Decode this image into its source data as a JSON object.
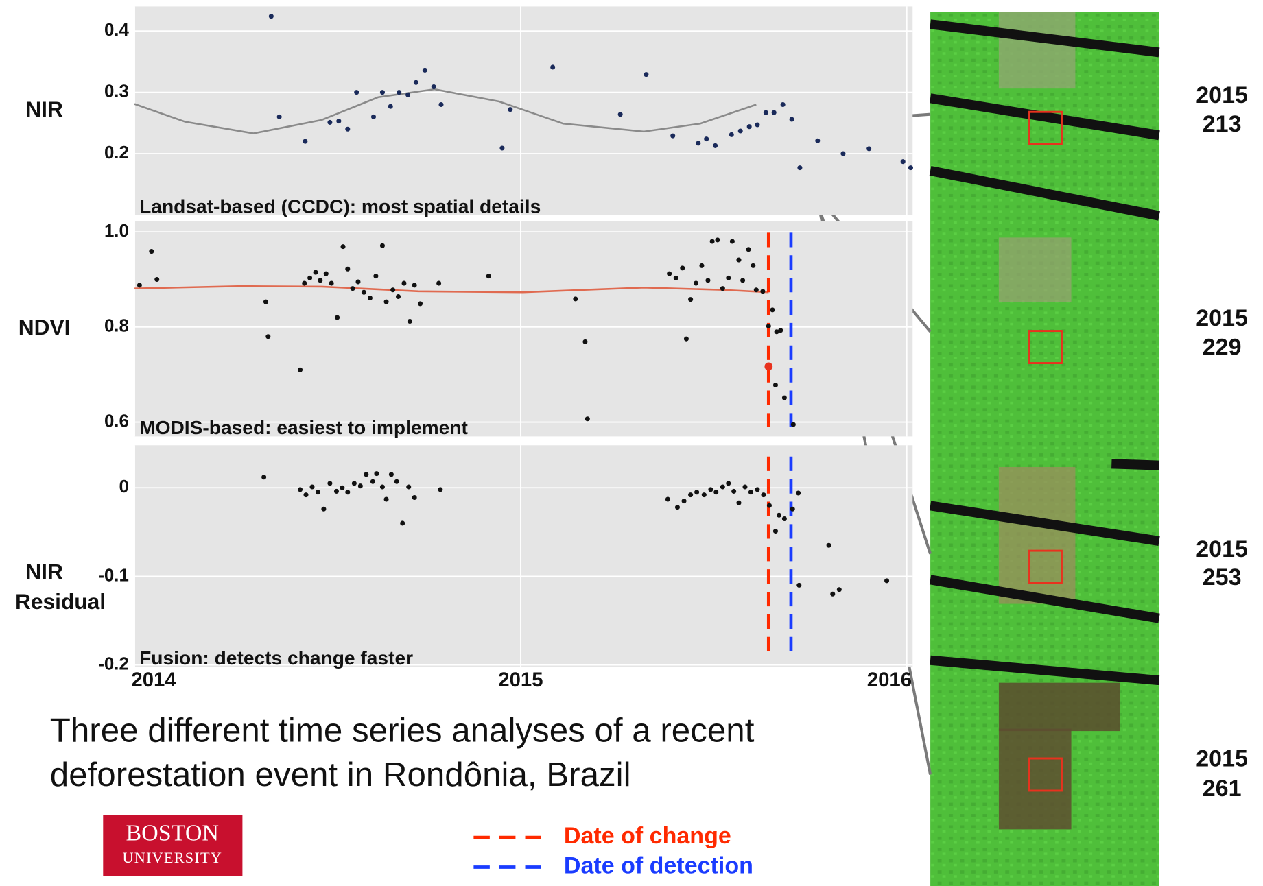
{
  "chart_data": [
    {
      "type": "scatter",
      "ylabel": [
        "NIR"
      ],
      "annotation": "Landsat-based (CCDC): most spatial details",
      "xlim": [
        2014,
        2016.015
      ],
      "ylim": [
        0.1,
        0.44
      ],
      "yticks": [
        0.2,
        0.3,
        0.4
      ],
      "grid": true,
      "points": {
        "color": "#1a2a5a",
        "x": [
          2014.354,
          2014.375,
          2014.442,
          2014.506,
          2014.529,
          2014.552,
          2014.575,
          2014.619,
          2014.642,
          2014.663,
          2014.685,
          2014.708,
          2014.729,
          2014.752,
          2014.775,
          2014.794,
          2014.952,
          2014.973,
          2015.083,
          2015.258,
          2015.325,
          2015.394,
          2015.46,
          2015.481,
          2015.504,
          2015.546,
          2015.569,
          2015.592,
          2015.613,
          2015.635,
          2015.656,
          2015.679,
          2015.702,
          2015.723,
          2015.769,
          2015.835,
          2015.902,
          2015.99,
          2016.01
        ],
        "values": [
          0.424,
          0.26,
          0.22,
          0.251,
          0.253,
          0.24,
          0.3,
          0.26,
          0.3,
          0.277,
          0.3,
          0.296,
          0.316,
          0.336,
          0.309,
          0.28,
          0.209,
          0.272,
          0.341,
          0.264,
          0.329,
          0.229,
          0.217,
          0.224,
          0.213,
          0.231,
          0.237,
          0.244,
          0.247,
          0.267,
          0.267,
          0.28,
          0.256,
          0.177,
          0.221,
          0.2,
          0.208,
          0.187,
          0.177
        ]
      },
      "fit": {
        "color": "#8a8a8a",
        "x": [
          2014.0,
          2014.131,
          2014.308,
          2014.485,
          2014.631,
          2014.777,
          2014.944,
          2015.11,
          2015.319,
          2015.465,
          2015.61
        ],
        "values": [
          0.281,
          0.252,
          0.233,
          0.255,
          0.292,
          0.305,
          0.285,
          0.249,
          0.236,
          0.249,
          0.28
        ]
      }
    },
    {
      "type": "scatter",
      "ylabel": [
        "NDVI"
      ],
      "annotation": "MODIS-based: easiest to implement",
      "xlim": [
        2014,
        2016.015
      ],
      "ylim": [
        0.57,
        1.022
      ],
      "yticks": [
        0.6,
        0.8,
        {
          "value": 1,
          "label": "1.0"
        }
      ],
      "grid": true,
      "show_dates": true,
      "points": {
        "color": "#111111",
        "x": [
          2014.013,
          2014.044,
          2014.058,
          2014.34,
          2014.346,
          2014.429,
          2014.44,
          2014.454,
          2014.469,
          2014.481,
          2014.496,
          2014.51,
          2014.525,
          2014.54,
          2014.552,
          2014.565,
          2014.579,
          2014.594,
          2014.61,
          2014.625,
          2014.642,
          2014.652,
          2014.669,
          2014.683,
          2014.698,
          2014.713,
          2014.725,
          2014.74,
          2014.788,
          2014.917,
          2015.142,
          2015.167,
          2015.173,
          2015.385,
          2015.402,
          2015.419,
          2015.429,
          2015.44,
          2015.454,
          2015.469,
          2015.485,
          2015.496,
          2015.51,
          2015.523,
          2015.538,
          2015.548,
          2015.565,
          2015.575,
          2015.59,
          2015.602,
          2015.61,
          2015.627,
          2015.642,
          2015.652,
          2015.663,
          2015.673,
          2015.66,
          2015.683,
          2015.706
        ],
        "values": [
          0.888,
          0.959,
          0.9,
          0.853,
          0.78,
          0.71,
          0.892,
          0.903,
          0.915,
          0.898,
          0.912,
          0.892,
          0.82,
          0.969,
          0.922,
          0.881,
          0.895,
          0.873,
          0.861,
          0.907,
          0.971,
          0.853,
          0.878,
          0.864,
          0.892,
          0.812,
          0.888,
          0.849,
          0.892,
          0.907,
          0.859,
          0.769,
          0.607,
          0.912,
          0.903,
          0.924,
          0.775,
          0.858,
          0.892,
          0.929,
          0.898,
          0.98,
          0.983,
          0.881,
          0.903,
          0.98,
          0.941,
          0.898,
          0.963,
          0.929,
          0.878,
          0.875,
          0.802,
          0.836,
          0.79,
          0.793,
          0.678,
          0.651,
          0.595
        ]
      },
      "highlight": {
        "x": 2015.642,
        "value": 0.717,
        "color": "#e8321e"
      },
      "fit": {
        "color": "#e06a50",
        "x": [
          2014.0,
          2014.277,
          2014.485,
          2014.735,
          2015.006,
          2015.319,
          2015.527,
          2015.642
        ],
        "values": [
          0.881,
          0.886,
          0.885,
          0.875,
          0.873,
          0.883,
          0.878,
          0.873
        ]
      }
    },
    {
      "type": "scatter",
      "ylabel": [
        "NIR",
        "Residual"
      ],
      "annotation": "Fusion:  detects change faster",
      "xlim": [
        2014,
        2016.015
      ],
      "ylim": [
        -0.202,
        0.048
      ],
      "yticks": [
        -0.2,
        -0.1,
        0
      ],
      "grid": true,
      "show_dates": true,
      "xticks": [
        2014,
        2015,
        2016
      ],
      "points": {
        "color": "#111111",
        "x": [
          2014.335,
          2014.429,
          2014.444,
          2014.46,
          2014.475,
          2014.49,
          2014.506,
          2014.523,
          2014.538,
          2014.552,
          2014.569,
          2014.585,
          2014.6,
          2014.617,
          2014.627,
          2014.642,
          2014.652,
          2014.665,
          2014.679,
          2014.694,
          2014.71,
          2014.725,
          2014.792,
          2015.381,
          2015.406,
          2015.423,
          2015.44,
          2015.456,
          2015.475,
          2015.492,
          2015.506,
          2015.523,
          2015.538,
          2015.552,
          2015.565,
          2015.581,
          2015.596,
          2015.613,
          2015.629,
          2015.644,
          2015.66,
          2015.669,
          2015.683,
          2015.704,
          2015.719,
          2015.721,
          2015.798,
          2015.808,
          2015.825,
          2015.948
        ],
        "values": [
          0.012,
          -0.002,
          -0.008,
          0.001,
          -0.005,
          -0.024,
          0.005,
          -0.004,
          0,
          -0.005,
          0.005,
          0.002,
          0.015,
          0.007,
          0.016,
          0.001,
          -0.013,
          0.015,
          0.007,
          -0.04,
          0.001,
          -0.011,
          -0.002,
          -0.013,
          -0.022,
          -0.015,
          -0.008,
          -0.005,
          -0.008,
          -0.002,
          -0.005,
          0.001,
          0.005,
          -0.004,
          -0.017,
          0.001,
          -0.005,
          -0.002,
          -0.008,
          -0.02,
          -0.049,
          -0.031,
          -0.035,
          -0.024,
          -0.006,
          -0.11,
          -0.065,
          -0.12,
          -0.115,
          -0.105
        ]
      }
    }
  ],
  "caption": [
    "Three different time series analyses of a recent",
    "deforestation event in Rondônia, Brazil"
  ],
  "logo": [
    "BOSTON",
    "UNIVERSITY"
  ],
  "legend": [
    {
      "label": "Date of change",
      "color": "#ff2a00",
      "x": 2015.642
    },
    {
      "label": "Date of detection",
      "color": "#1a3cff",
      "x": 2015.7
    }
  ],
  "images": [
    {
      "year": "2015",
      "day": "213"
    },
    {
      "year": "2015",
      "day": "229"
    },
    {
      "year": "2015",
      "day": "253"
    },
    {
      "year": "2015",
      "day": "261"
    }
  ]
}
